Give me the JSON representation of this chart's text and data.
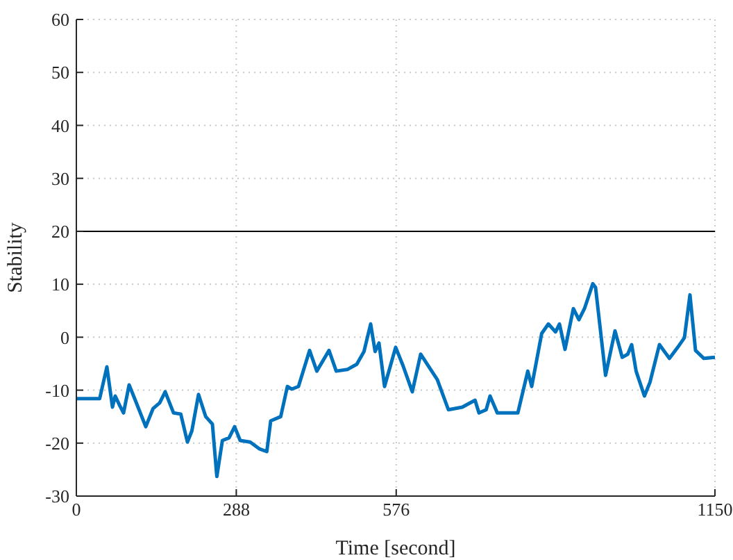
{
  "chart_data": {
    "type": "line",
    "xlabel": "Time [second]",
    "ylabel": "Stability",
    "x": [
      0,
      42,
      55,
      65,
      70,
      78,
      85,
      95,
      105,
      125,
      138,
      150,
      160,
      175,
      188,
      200,
      208,
      220,
      233,
      245,
      253,
      263,
      275,
      285,
      295,
      313,
      330,
      343,
      350,
      368,
      380,
      388,
      400,
      420,
      433,
      455,
      468,
      488,
      505,
      518,
      530,
      538,
      545,
      555,
      575,
      588,
      605,
      620,
      633,
      650,
      670,
      695,
      718,
      725,
      738,
      745,
      758,
      795,
      813,
      820,
      838,
      850,
      863,
      870,
      880,
      895,
      905,
      915,
      930,
      935,
      953,
      970,
      983,
      993,
      1000,
      1008,
      1023,
      1033,
      1050,
      1068,
      1083,
      1095,
      1105,
      1115,
      1130,
      1150
    ],
    "series": [
      {
        "color": "#0072bd",
        "values": [
          -11.6,
          -11.6,
          -5.6,
          -13.2,
          -11.1,
          -12.9,
          -14.3,
          -9.0,
          -11.6,
          -16.9,
          -13.5,
          -12.4,
          -10.3,
          -14.3,
          -14.5,
          -19.8,
          -17.7,
          -10.8,
          -15.0,
          -16.4,
          -26.3,
          -19.5,
          -19.0,
          -16.9,
          -19.5,
          -19.8,
          -21.1,
          -21.6,
          -15.8,
          -15.0,
          -9.3,
          -9.8,
          -9.3,
          -2.5,
          -6.4,
          -2.5,
          -6.4,
          -6.1,
          -5.1,
          -2.7,
          2.5,
          -2.7,
          -1.1,
          -9.3,
          -1.9,
          -5.3,
          -10.3,
          -3.2,
          -5.3,
          -8.0,
          -13.7,
          -13.2,
          -11.9,
          -14.3,
          -13.7,
          -11.1,
          -14.3,
          -14.3,
          -6.4,
          -9.3,
          0.7,
          2.5,
          1.0,
          2.5,
          -2.3,
          5.4,
          3.3,
          5.4,
          10.1,
          9.4,
          -7.2,
          1.2,
          -3.8,
          -3.2,
          -1.4,
          -6.4,
          -11.1,
          -8.5,
          -1.4,
          -4.0,
          -1.9,
          -0.1,
          8.0,
          -2.5,
          -4.0,
          -3.8
        ]
      }
    ],
    "xlim": [
      0,
      1150
    ],
    "xticks": [
      0,
      288,
      576,
      1150
    ],
    "ylim": [
      -30,
      60
    ],
    "yticks": [
      -30,
      -20,
      -10,
      0,
      10,
      20,
      30,
      40,
      50,
      60
    ],
    "grid": true,
    "marker": "none",
    "line_style": "solid",
    "ref_lines": [
      {
        "axis": "y",
        "value": 20,
        "color": "#000000",
        "line_style": "solid"
      }
    ]
  }
}
